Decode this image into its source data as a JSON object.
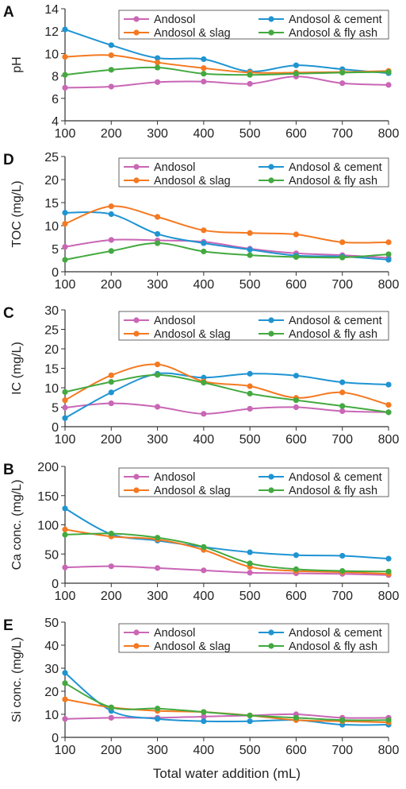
{
  "figure": {
    "shared_xlabel": "Total water addition (mL)"
  },
  "chart_data": [
    {
      "panel": "A",
      "type": "line",
      "ylabel": "pH",
      "ylim": [
        4,
        14
      ],
      "yticks": [
        4,
        6,
        8,
        10,
        12,
        14
      ],
      "x": [
        100,
        200,
        300,
        400,
        500,
        600,
        700,
        800
      ],
      "xlim": [
        100,
        800
      ],
      "series": [
        {
          "name": "Andosol",
          "color": "#c966b5",
          "values": [
            6.95,
            7.05,
            7.45,
            7.5,
            7.3,
            7.95,
            7.35,
            7.2
          ]
        },
        {
          "name": "Andosol & cement",
          "color": "#1f94d2",
          "values": [
            12.15,
            10.75,
            9.6,
            9.5,
            8.4,
            8.95,
            8.6,
            8.25
          ]
        },
        {
          "name": "Andosol & slag",
          "color": "#f47920",
          "values": [
            9.7,
            9.85,
            9.2,
            8.7,
            8.3,
            8.3,
            8.35,
            8.45
          ]
        },
        {
          "name": "Andosol & fly ash",
          "color": "#43a940",
          "values": [
            8.1,
            8.55,
            8.75,
            8.2,
            8.1,
            8.2,
            8.3,
            8.35
          ]
        }
      ]
    },
    {
      "panel": "D",
      "type": "line",
      "ylabel": "TOC (mg/L)",
      "ylim": [
        0,
        25
      ],
      "yticks": [
        0,
        5,
        10,
        15,
        20,
        25
      ],
      "x": [
        100,
        200,
        300,
        400,
        500,
        600,
        700,
        800
      ],
      "xlim": [
        100,
        800
      ],
      "series": [
        {
          "name": "Andosol",
          "color": "#c966b5",
          "values": [
            5.4,
            6.9,
            6.8,
            6.5,
            5.0,
            4.0,
            3.6,
            3.0
          ]
        },
        {
          "name": "Andosol & cement",
          "color": "#1f94d2",
          "values": [
            12.8,
            12.5,
            8.2,
            6.2,
            4.8,
            3.5,
            3.3,
            2.6
          ]
        },
        {
          "name": "Andosol & slag",
          "color": "#f47920",
          "values": [
            10.4,
            14.2,
            11.9,
            9.0,
            8.4,
            8.1,
            6.4,
            6.4
          ]
        },
        {
          "name": "Andosol & fly ash",
          "color": "#43a940",
          "values": [
            2.6,
            4.5,
            6.2,
            4.4,
            3.6,
            3.2,
            3.1,
            3.8
          ]
        }
      ]
    },
    {
      "panel": "C",
      "type": "line",
      "ylabel": "IC (mg/L)",
      "ylim": [
        0,
        30
      ],
      "yticks": [
        0,
        5,
        10,
        15,
        20,
        25,
        30
      ],
      "x": [
        100,
        200,
        300,
        400,
        500,
        600,
        700,
        800
      ],
      "xlim": [
        100,
        800
      ],
      "series": [
        {
          "name": "Andosol",
          "color": "#c966b5",
          "values": [
            4.9,
            6.0,
            5.1,
            3.3,
            4.6,
            5.0,
            4.0,
            3.7
          ]
        },
        {
          "name": "Andosol & cement",
          "color": "#1f94d2",
          "values": [
            2.2,
            8.8,
            13.6,
            12.6,
            13.6,
            13.1,
            11.4,
            10.8
          ]
        },
        {
          "name": "Andosol & slag",
          "color": "#f47920",
          "values": [
            6.8,
            13.2,
            16.0,
            11.6,
            10.4,
            7.4,
            8.8,
            5.6
          ]
        },
        {
          "name": "Andosol & fly ash",
          "color": "#43a940",
          "values": [
            8.9,
            11.5,
            13.3,
            11.3,
            8.5,
            6.8,
            5.3,
            3.7
          ]
        }
      ]
    },
    {
      "panel": "B",
      "type": "line",
      "ylabel": "Ca conc. (mg/L)",
      "ylim": [
        0,
        200
      ],
      "yticks": [
        0,
        50,
        100,
        150,
        200
      ],
      "x": [
        100,
        200,
        300,
        400,
        500,
        600,
        700,
        800
      ],
      "xlim": [
        100,
        800
      ],
      "series": [
        {
          "name": "Andosol",
          "color": "#c966b5",
          "values": [
            27,
            29,
            26,
            22,
            18,
            17,
            16,
            14
          ]
        },
        {
          "name": "Andosol & cement",
          "color": "#1f94d2",
          "values": [
            128,
            84,
            73,
            62,
            53,
            48,
            47,
            42
          ]
        },
        {
          "name": "Andosol & slag",
          "color": "#f47920",
          "values": [
            92,
            80,
            75,
            57,
            28,
            21,
            19,
            16
          ]
        },
        {
          "name": "Andosol & fly ash",
          "color": "#43a940",
          "values": [
            83,
            85,
            78,
            62,
            34,
            24,
            21,
            20
          ]
        }
      ]
    },
    {
      "panel": "E",
      "type": "line",
      "ylabel": "Si conc. (mg/L)",
      "ylim": [
        0,
        50
      ],
      "yticks": [
        0,
        10,
        20,
        30,
        40,
        50
      ],
      "x": [
        100,
        200,
        300,
        400,
        500,
        600,
        700,
        800
      ],
      "xlim": [
        100,
        800
      ],
      "series": [
        {
          "name": "Andosol",
          "color": "#c966b5",
          "values": [
            8.0,
            8.5,
            8.5,
            9.0,
            9.5,
            10.0,
            8.5,
            8.5
          ]
        },
        {
          "name": "Andosol & cement",
          "color": "#1f94d2",
          "values": [
            28.0,
            11.5,
            8.0,
            7.0,
            7.0,
            7.5,
            5.5,
            5.5
          ]
        },
        {
          "name": "Andosol & slag",
          "color": "#f47920",
          "values": [
            16.5,
            13.0,
            11.5,
            11.0,
            9.5,
            7.5,
            7.0,
            6.5
          ]
        },
        {
          "name": "Andosol & fly ash",
          "color": "#43a940",
          "values": [
            23.5,
            13.0,
            12.5,
            11.0,
            9.5,
            8.5,
            7.5,
            7.5
          ]
        }
      ]
    }
  ]
}
